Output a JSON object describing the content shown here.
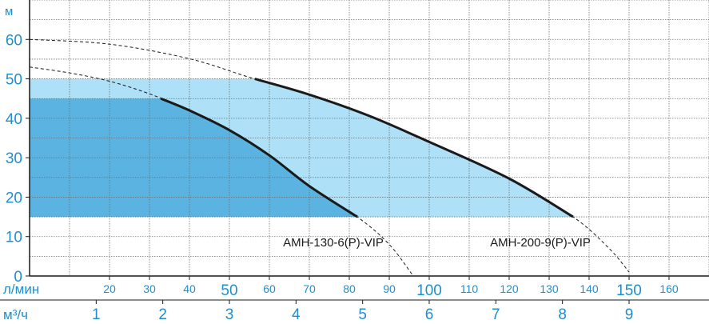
{
  "chart_data": {
    "type": "area",
    "title": "",
    "ylabel": "м",
    "xlabel": "л/мин",
    "x2label": "м³/ч",
    "ylim": [
      0,
      70
    ],
    "xlim": [
      0,
      170
    ],
    "y_ticks": [
      0,
      10,
      20,
      30,
      40,
      50,
      60
    ],
    "x_ticks": [
      20,
      30,
      40,
      50,
      60,
      70,
      80,
      90,
      100,
      110,
      120,
      130,
      140,
      150,
      160
    ],
    "x_ticks_major": [
      50,
      100,
      150
    ],
    "x2_ticks": [
      1,
      2,
      3,
      4,
      5,
      6,
      7,
      8,
      9
    ],
    "x2_factor_l_per_min": 16.6667,
    "grid": true,
    "colors": {
      "accent": "#1f8fcc",
      "region_light": "#aee0f7",
      "region_dark": "#5bb3e1",
      "curve": "#1a1a1a",
      "grid": "#6f6f6f"
    },
    "series": [
      {
        "name": "АМН-130-6(P)-VIP",
        "x": [
          0,
          10,
          20,
          30,
          40,
          50,
          60,
          70,
          82,
          90,
          96
        ],
        "y": [
          53,
          51.5,
          49.4,
          46.2,
          42,
          37,
          30.6,
          22.8,
          15,
          8,
          0
        ],
        "operating_range": {
          "x_min": 0,
          "x_max": 82,
          "y_min": 15,
          "y_max": 45
        }
      },
      {
        "name": "АМН-200-9(P)-VIP",
        "x": [
          0,
          20,
          40,
          55,
          70,
          85,
          100,
          120,
          136,
          145,
          150
        ],
        "y": [
          60,
          58.8,
          55.1,
          50.4,
          46,
          40.6,
          34,
          24.7,
          15,
          7,
          1
        ],
        "operating_range": {
          "x_min": 0,
          "x_max": 136,
          "y_min": 15,
          "y_max": 50
        }
      }
    ]
  }
}
